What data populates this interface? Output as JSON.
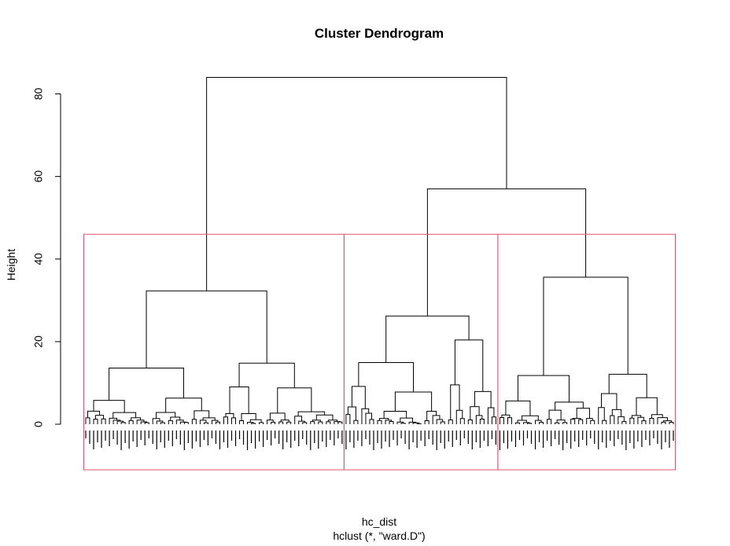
{
  "chart_data": {
    "type": "dendrogram",
    "title": "Cluster Dendrogram",
    "ylabel": "Height",
    "xlabel": "hc_dist",
    "sub": "hclust (*, \"ward.D\")",
    "y_ticks": [
      "0",
      "20",
      "40",
      "60",
      "80"
    ],
    "y_tick_values": [
      0,
      20,
      40,
      60,
      80
    ],
    "ylim": [
      0,
      86
    ],
    "leaf_count": 150,
    "rect_color": "#DF536B",
    "line_color": "#000000",
    "k": 3,
    "cut_height": 46,
    "cluster_leaf_ranges": [
      [
        0,
        65
      ],
      [
        66,
        104
      ],
      [
        105,
        149
      ]
    ],
    "top_merges": [
      {
        "name": "root",
        "height": 84
      },
      {
        "name": "right-join",
        "height": 57
      },
      {
        "name": "left-cluster",
        "height": 32.3
      },
      {
        "name": "right-cluster",
        "height": 35.6
      },
      {
        "name": "middle-cluster",
        "height": 26.2
      }
    ]
  }
}
